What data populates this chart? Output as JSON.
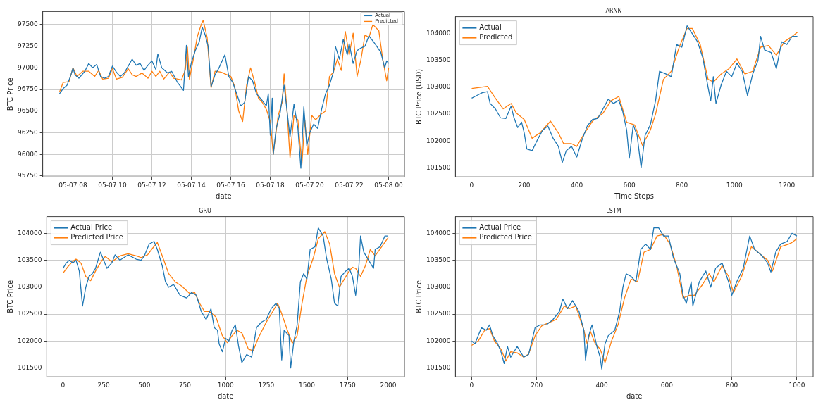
{
  "chart_data": [
    {
      "type": "line",
      "xlabel": "date",
      "ylabel": "BTC Price",
      "legend": "top right",
      "grid": true,
      "xlim": [
        "--05-07T06:28",
        "--05-08T00:48"
      ],
      "ylim": [
        95740,
        97650
      ],
      "xticks": [
        {
          "value": "--05-07T08:00",
          "label": "05-07 08"
        },
        {
          "value": "--05-07T10:00",
          "label": "05-07 10"
        },
        {
          "value": "--05-07T12:00",
          "label": "05-07 12"
        },
        {
          "value": "--05-07T14:00",
          "label": "05-07 14"
        },
        {
          "value": "--05-07T16:00",
          "label": "05-07 16"
        },
        {
          "value": "--05-07T18:00",
          "label": "05-07 18"
        },
        {
          "value": "--05-07T20:00",
          "label": "05-07 20"
        },
        {
          "value": "--05-07T22:00",
          "label": "05-07 22"
        },
        {
          "value": "--05-08T00:00",
          "label": "05-08 00"
        }
      ],
      "yticks": [
        95750,
        96000,
        96250,
        96500,
        96750,
        97000,
        97250,
        97500
      ],
      "series": [
        {
          "name": "Actual",
          "color": "#1f77b4",
          "x": [
            "--05-07T07:19",
            "--05-07T07:30",
            "--05-07T07:42",
            "--05-07T07:54",
            "--05-07T08:00",
            "--05-07T08:06",
            "--05-07T08:18",
            "--05-07T08:36",
            "--05-07T08:48",
            "--05-07T09:00",
            "--05-07T09:12",
            "--05-07T09:24",
            "--05-07T09:36",
            "--05-07T09:48",
            "--05-07T10:00",
            "--05-07T10:12",
            "--05-07T10:24",
            "--05-07T10:36",
            "--05-07T10:48",
            "--05-07T11:00",
            "--05-07T11:12",
            "--05-07T11:24",
            "--05-07T11:36",
            "--05-07T11:48",
            "--05-07T12:00",
            "--05-07T12:12",
            "--05-07T12:18",
            "--05-07T12:30",
            "--05-07T12:48",
            "--05-07T13:00",
            "--05-07T13:18",
            "--05-07T13:36",
            "--05-07T13:45",
            "--05-07T13:51",
            "--05-07T14:00",
            "--05-07T14:12",
            "--05-07T14:24",
            "--05-07T14:33",
            "--05-07T14:42",
            "--05-07T14:51",
            "--05-07T15:00",
            "--05-07T15:12",
            "--05-07T15:24",
            "--05-07T15:42",
            "--05-07T15:54",
            "--05-07T16:06",
            "--05-07T16:18",
            "--05-07T16:30",
            "--05-07T16:42",
            "--05-07T16:54",
            "--05-07T17:06",
            "--05-07T17:18",
            "--05-07T17:36",
            "--05-07T17:48",
            "--05-07T17:54",
            "--05-07T18:00",
            "--05-07T18:06",
            "--05-07T18:09",
            "--05-07T18:18",
            "--05-07T18:30",
            "--05-07T18:42",
            "--05-07T18:51",
            "--05-07T19:00",
            "--05-07T19:12",
            "--05-07T19:24",
            "--05-07T19:33",
            "--05-07T19:42",
            "--05-07T19:51",
            "--05-07T20:00",
            "--05-07T20:12",
            "--05-07T20:24",
            "--05-07T20:36",
            "--05-07T20:48",
            "--05-07T21:00",
            "--05-07T21:12",
            "--05-07T21:18",
            "--05-07T21:30",
            "--05-07T21:42",
            "--05-07T21:54",
            "--05-07T22:00",
            "--05-07T22:12",
            "--05-07T22:24",
            "--05-07T22:36",
            "--05-07T22:48",
            "--05-07T23:00",
            "--05-07T23:18",
            "--05-07T23:36",
            "--05-07T23:48",
            "--05-07T23:54",
            "--05-08T00:00"
          ],
          "values": [
            96700,
            96760,
            96800,
            96920,
            97000,
            96920,
            96880,
            96960,
            97050,
            97000,
            97040,
            96900,
            96880,
            96900,
            97020,
            96950,
            96900,
            96940,
            97020,
            97100,
            97030,
            97050,
            96970,
            97030,
            97080,
            96980,
            97160,
            97000,
            96940,
            96960,
            96830,
            96740,
            97260,
            96900,
            97060,
            97200,
            97300,
            97470,
            97380,
            97250,
            96780,
            96920,
            97000,
            97150,
            96900,
            96830,
            96700,
            96560,
            96600,
            96900,
            96850,
            96700,
            96620,
            96560,
            96700,
            96220,
            96650,
            96000,
            96300,
            96480,
            96800,
            96500,
            96200,
            96580,
            96300,
            95840,
            96550,
            96100,
            96250,
            96350,
            96300,
            96520,
            96700,
            96800,
            96950,
            97250,
            97100,
            97330,
            97150,
            97280,
            97050,
            97200,
            97230,
            97250,
            97370,
            97280,
            97180,
            97000,
            97080,
            97050
          ]
        },
        {
          "name": "Predicted",
          "color": "#ff7f0e",
          "x": [
            "--05-07T07:19",
            "--05-07T07:30",
            "--05-07T07:48",
            "--05-07T08:00",
            "--05-07T08:12",
            "--05-07T08:30",
            "--05-07T08:48",
            "--05-07T09:06",
            "--05-07T09:18",
            "--05-07T09:30",
            "--05-07T09:48",
            "--05-07T10:00",
            "--05-07T10:12",
            "--05-07T10:30",
            "--05-07T10:48",
            "--05-07T11:00",
            "--05-07T11:12",
            "--05-07T11:30",
            "--05-07T11:48",
            "--05-07T12:00",
            "--05-07T12:12",
            "--05-07T12:24",
            "--05-07T12:36",
            "--05-07T12:54",
            "--05-07T13:06",
            "--05-07T13:30",
            "--05-07T13:42",
            "--05-07T13:48",
            "--05-07T13:54",
            "--05-07T14:06",
            "--05-07T14:18",
            "--05-07T14:30",
            "--05-07T14:36",
            "--05-07T14:48",
            "--05-07T15:00",
            "--05-07T15:12",
            "--05-07T15:30",
            "--05-07T15:48",
            "--05-07T16:00",
            "--05-07T16:12",
            "--05-07T16:24",
            "--05-07T16:36",
            "--05-07T16:48",
            "--05-07T17:00",
            "--05-07T17:12",
            "--05-07T17:24",
            "--05-07T17:36",
            "--05-07T17:48",
            "--05-07T18:00",
            "--05-07T18:09",
            "--05-07T18:24",
            "--05-07T18:36",
            "--05-07T18:42",
            "--05-07T18:51",
            "--05-07T19:00",
            "--05-07T19:12",
            "--05-07T19:24",
            "--05-07T19:36",
            "--05-07T19:45",
            "--05-07T19:54",
            "--05-07T20:06",
            "--05-07T20:18",
            "--05-07T20:36",
            "--05-07T20:48",
            "--05-07T21:00",
            "--05-07T21:12",
            "--05-07T21:24",
            "--05-07T21:36",
            "--05-07T21:48",
            "--05-07T22:00",
            "--05-07T22:12",
            "--05-07T22:24",
            "--05-07T22:36",
            "--05-07T22:48",
            "--05-07T23:00",
            "--05-07T23:12",
            "--05-07T23:30",
            "--05-07T23:42",
            "--05-07T23:54",
            "--05-08T00:00"
          ],
          "values": [
            96720,
            96830,
            96840,
            97000,
            96900,
            96960,
            96960,
            96900,
            96970,
            96870,
            96880,
            96990,
            96870,
            96890,
            96990,
            96920,
            96900,
            96940,
            96880,
            96960,
            96900,
            96960,
            96870,
            96950,
            96880,
            96860,
            96980,
            97240,
            96870,
            97100,
            97360,
            97500,
            97550,
            97350,
            96770,
            96960,
            96950,
            96920,
            96900,
            96780,
            96500,
            96380,
            96800,
            97000,
            96840,
            96650,
            96600,
            96520,
            96380,
            96000,
            96450,
            96600,
            96930,
            96500,
            95960,
            96450,
            96400,
            95880,
            96400,
            96000,
            96450,
            96400,
            96470,
            96500,
            96900,
            96950,
            97100,
            96970,
            97420,
            97150,
            97400,
            96900,
            97100,
            97380,
            97350,
            97500,
            97430,
            97100,
            96850,
            97000
          ]
        }
      ]
    },
    {
      "type": "line",
      "title": "ARNN",
      "xlabel": "Time Steps",
      "ylabel": "BTC Price (USD)",
      "legend": "top left",
      "grid": false,
      "xlim": [
        -62,
        1300
      ],
      "ylim": [
        101330,
        104320
      ],
      "xticks": [
        0,
        200,
        400,
        600,
        800,
        1000,
        1200
      ],
      "yticks": [
        101500,
        102000,
        102500,
        103000,
        103500,
        104000
      ],
      "series": [
        {
          "name": "Actual",
          "color": "#1f77b4",
          "x": [
            0,
            20,
            40,
            60,
            70,
            90,
            110,
            130,
            150,
            160,
            175,
            190,
            200,
            210,
            230,
            250,
            270,
            290,
            310,
            330,
            345,
            360,
            380,
            400,
            420,
            440,
            460,
            480,
            500,
            520,
            540,
            560,
            575,
            590,
            600,
            615,
            630,
            645,
            660,
            680,
            700,
            715,
            740,
            760,
            780,
            800,
            820,
            840,
            860,
            880,
            900,
            910,
            920,
            930,
            950,
            970,
            990,
            1010,
            1030,
            1050,
            1070,
            1090,
            1100,
            1115,
            1140,
            1160,
            1180,
            1200,
            1220,
            1240
          ],
          "values": [
            102800,
            102850,
            102900,
            102920,
            102700,
            102600,
            102430,
            102420,
            102650,
            102450,
            102250,
            102350,
            102150,
            101850,
            101820,
            102020,
            102200,
            102280,
            102050,
            101900,
            101600,
            101820,
            101900,
            101700,
            102020,
            102280,
            102400,
            102420,
            102600,
            102780,
            102700,
            102760,
            102550,
            102200,
            101680,
            102300,
            102100,
            101500,
            102100,
            102300,
            102750,
            103300,
            103250,
            103200,
            103800,
            103750,
            104150,
            104000,
            103850,
            103550,
            103000,
            102750,
            103200,
            102700,
            103050,
            103300,
            103200,
            103450,
            103300,
            102850,
            103250,
            103500,
            103950,
            103700,
            103650,
            103350,
            103850,
            103800,
            103950,
            103950
          ]
        },
        {
          "name": "Predicted",
          "color": "#ff7f0e",
          "x": [
            0,
            30,
            60,
            90,
            120,
            150,
            170,
            200,
            230,
            260,
            300,
            330,
            350,
            380,
            400,
            430,
            460,
            500,
            530,
            560,
            590,
            620,
            650,
            680,
            700,
            730,
            760,
            790,
            820,
            840,
            870,
            900,
            920,
            950,
            980,
            1010,
            1040,
            1070,
            1100,
            1130,
            1160,
            1190,
            1220,
            1240
          ],
          "values": [
            102980,
            103000,
            103020,
            102800,
            102600,
            102700,
            102520,
            102400,
            102050,
            102150,
            102370,
            102150,
            101950,
            101950,
            101900,
            102150,
            102370,
            102520,
            102750,
            102830,
            102350,
            102300,
            101920,
            102200,
            102500,
            103150,
            103300,
            103750,
            104100,
            104100,
            103800,
            103150,
            103100,
            103250,
            103350,
            103530,
            103250,
            103300,
            103750,
            103780,
            103600,
            103850,
            103950,
            104030
          ]
        }
      ]
    },
    {
      "type": "line",
      "title": "GRU",
      "xlabel": "date",
      "ylabel": "BTC Price",
      "legend": "top left",
      "grid": true,
      "xlim": [
        -100,
        2100
      ],
      "ylim": [
        101335,
        104310
      ],
      "xticks": [
        0,
        250,
        500,
        750,
        1000,
        1250,
        1500,
        1750,
        2000
      ],
      "yticks": [
        101500,
        102000,
        102500,
        103000,
        103500,
        104000
      ],
      "series": [
        {
          "name": "Actual Price",
          "color": "#1f77b4",
          "x": [
            0,
            20,
            40,
            60,
            80,
            100,
            120,
            140,
            160,
            180,
            200,
            230,
            250,
            270,
            300,
            320,
            350,
            400,
            450,
            480,
            500,
            530,
            560,
            580,
            610,
            630,
            650,
            680,
            720,
            760,
            790,
            820,
            850,
            880,
            910,
            930,
            950,
            960,
            980,
            1000,
            1020,
            1040,
            1060,
            1080,
            1100,
            1130,
            1160,
            1190,
            1220,
            1250,
            1280,
            1310,
            1330,
            1345,
            1360,
            1390,
            1400,
            1420,
            1440,
            1460,
            1480,
            1500,
            1520,
            1550,
            1570,
            1600,
            1620,
            1650,
            1670,
            1690,
            1710,
            1740,
            1760,
            1780,
            1800,
            1820,
            1830,
            1850,
            1880,
            1910,
            1920,
            1950,
            1980,
            2000
          ],
          "values": [
            103350,
            103450,
            103500,
            103450,
            103500,
            103300,
            102650,
            103000,
            103200,
            103250,
            103350,
            103650,
            103500,
            103350,
            103450,
            103600,
            103500,
            103600,
            103520,
            103500,
            103580,
            103800,
            103850,
            103700,
            103400,
            103100,
            103000,
            103050,
            102850,
            102800,
            102900,
            102850,
            102550,
            102400,
            102600,
            102250,
            102200,
            101950,
            101800,
            102050,
            102000,
            102200,
            102300,
            101900,
            101600,
            101750,
            101700,
            102250,
            102350,
            102400,
            102600,
            102700,
            102600,
            101650,
            102200,
            102100,
            101500,
            102000,
            102300,
            103100,
            103250,
            103150,
            103700,
            103750,
            104100,
            103950,
            103550,
            103150,
            102700,
            102650,
            103200,
            103300,
            103350,
            103200,
            102850,
            103400,
            103950,
            103650,
            103500,
            103350,
            103700,
            103750,
            103950,
            103950
          ]
        },
        {
          "name": "Predicted Price",
          "color": "#ff7f0e",
          "x": [
            0,
            30,
            60,
            80,
            110,
            140,
            170,
            200,
            240,
            260,
            300,
            350,
            400,
            450,
            480,
            520,
            550,
            580,
            620,
            650,
            690,
            730,
            780,
            810,
            840,
            870,
            900,
            940,
            980,
            1010,
            1040,
            1070,
            1100,
            1140,
            1170,
            1200,
            1250,
            1290,
            1320,
            1340,
            1380,
            1410,
            1440,
            1470,
            1500,
            1540,
            1570,
            1610,
            1640,
            1670,
            1700,
            1730,
            1760,
            1780,
            1800,
            1830,
            1860,
            1890,
            1920,
            1960,
            2000
          ],
          "values": [
            103260,
            103380,
            103480,
            103520,
            103450,
            103200,
            103120,
            103300,
            103500,
            103570,
            103470,
            103580,
            103620,
            103580,
            103550,
            103600,
            103720,
            103830,
            103500,
            103250,
            103100,
            103020,
            102880,
            102900,
            102700,
            102550,
            102550,
            102450,
            102100,
            101970,
            102100,
            102200,
            102150,
            101850,
            101820,
            102050,
            102350,
            102550,
            102700,
            102550,
            102200,
            101960,
            102100,
            102700,
            103200,
            103550,
            103900,
            104030,
            103800,
            103250,
            103000,
            103150,
            103300,
            103370,
            103350,
            103200,
            103400,
            103700,
            103580,
            103750,
            103920
          ]
        }
      ]
    },
    {
      "type": "line",
      "title": "LSTM",
      "xlabel": "date",
      "ylabel": "BTC Price",
      "legend": "top left",
      "grid": true,
      "xlim": [
        -50,
        1050
      ],
      "ylim": [
        101335,
        104310
      ],
      "xticks": [
        0,
        200,
        400,
        600,
        800,
        1000
      ],
      "yticks": [
        101500,
        102000,
        102500,
        103000,
        103500,
        104000
      ],
      "series": [
        {
          "name": "Actual Price",
          "color": "#1f77b4",
          "x": [
            0,
            10,
            20,
            30,
            45,
            55,
            65,
            80,
            90,
            100,
            110,
            120,
            140,
            150,
            160,
            175,
            185,
            195,
            210,
            230,
            250,
            270,
            280,
            295,
            310,
            330,
            345,
            350,
            360,
            370,
            385,
            395,
            400,
            410,
            420,
            440,
            455,
            465,
            475,
            490,
            505,
            520,
            535,
            550,
            560,
            575,
            590,
            605,
            620,
            640,
            650,
            660,
            675,
            680,
            700,
            720,
            735,
            750,
            770,
            790,
            800,
            815,
            835,
            855,
            870,
            890,
            910,
            920,
            935,
            950,
            970,
            985,
            1000
          ],
          "values": [
            102000,
            101950,
            102100,
            102250,
            102200,
            102300,
            102100,
            101950,
            101800,
            101580,
            101900,
            101700,
            101900,
            101800,
            101700,
            101750,
            102000,
            102250,
            102300,
            102300,
            102400,
            102550,
            102780,
            102600,
            102750,
            102550,
            102200,
            101650,
            102100,
            102300,
            101900,
            101700,
            101480,
            101950,
            102100,
            102200,
            102550,
            103000,
            103250,
            103200,
            103100,
            103700,
            103800,
            103700,
            104100,
            104100,
            103950,
            103950,
            103550,
            103250,
            102850,
            102700,
            103100,
            102650,
            103100,
            103300,
            103000,
            103350,
            103450,
            103100,
            102850,
            103100,
            103350,
            103950,
            103700,
            103600,
            103450,
            103280,
            103650,
            103800,
            103850,
            104000,
            103950
          ]
        },
        {
          "name": "Predicted Price",
          "color": "#ff7f0e",
          "x": [
            0,
            20,
            40,
            55,
            70,
            90,
            105,
            120,
            140,
            160,
            175,
            195,
            215,
            240,
            260,
            285,
            300,
            320,
            345,
            355,
            365,
            380,
            395,
            410,
            430,
            450,
            470,
            490,
            510,
            530,
            550,
            570,
            590,
            610,
            630,
            650,
            670,
            685,
            710,
            730,
            745,
            770,
            790,
            805,
            830,
            860,
            890,
            910,
            925,
            950,
            975,
            985,
            1000
          ],
          "values": [
            101920,
            102000,
            102200,
            102230,
            102000,
            101850,
            101630,
            101800,
            101780,
            101700,
            101760,
            102100,
            102280,
            102350,
            102400,
            102650,
            102600,
            102650,
            102200,
            101950,
            102180,
            101950,
            101850,
            101600,
            102000,
            102300,
            102800,
            103150,
            103100,
            103650,
            103700,
            103950,
            103980,
            103800,
            103400,
            102800,
            102850,
            102850,
            103050,
            103250,
            103100,
            103400,
            103200,
            102900,
            103200,
            103750,
            103600,
            103500,
            103300,
            103750,
            103800,
            103830,
            103900
          ]
        }
      ]
    }
  ]
}
